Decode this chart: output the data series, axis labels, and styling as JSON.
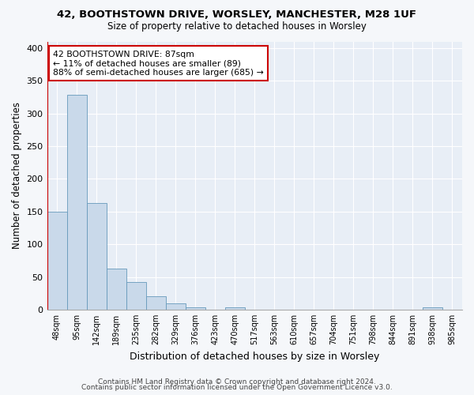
{
  "title1": "42, BOOTHSTOWN DRIVE, WORSLEY, MANCHESTER, M28 1UF",
  "title2": "Size of property relative to detached houses in Worsley",
  "xlabel": "Distribution of detached houses by size in Worsley",
  "ylabel": "Number of detached properties",
  "categories": [
    "48sqm",
    "95sqm",
    "142sqm",
    "189sqm",
    "235sqm",
    "282sqm",
    "329sqm",
    "376sqm",
    "423sqm",
    "470sqm",
    "517sqm",
    "563sqm",
    "610sqm",
    "657sqm",
    "704sqm",
    "751sqm",
    "798sqm",
    "844sqm",
    "891sqm",
    "938sqm",
    "985sqm"
  ],
  "values": [
    150,
    328,
    163,
    63,
    42,
    21,
    9,
    4,
    0,
    4,
    0,
    0,
    0,
    0,
    0,
    0,
    0,
    0,
    0,
    4,
    0
  ],
  "bar_color": "#c9d9ea",
  "bar_edge_color": "#6699bb",
  "bar_edge_width": 0.6,
  "vline_color": "#cc0000",
  "vline_x": -0.5,
  "annotation_line1": "42 BOOTHSTOWN DRIVE: 87sqm",
  "annotation_line2": "← 11% of detached houses are smaller (89)",
  "annotation_line3": "88% of semi-detached houses are larger (685) →",
  "annotation_box_color": "#ffffff",
  "annotation_box_edge": "#cc0000",
  "ylim": [
    0,
    410
  ],
  "yticks": [
    0,
    50,
    100,
    150,
    200,
    250,
    300,
    350,
    400
  ],
  "bg_color": "#e8eef6",
  "grid_color": "#ffffff",
  "fig_bg_color": "#f5f7fa",
  "footer1": "Contains HM Land Registry data © Crown copyright and database right 2024.",
  "footer2": "Contains public sector information licensed under the Open Government Licence v3.0."
}
